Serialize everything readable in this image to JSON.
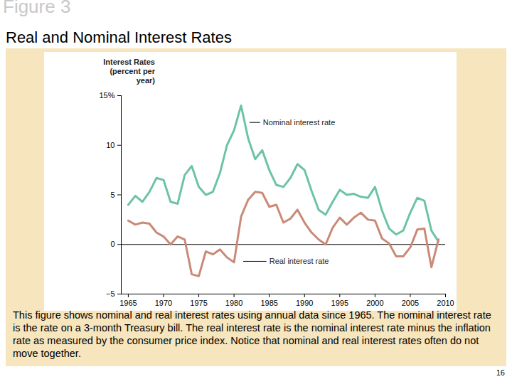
{
  "figure_label": "Figure 3",
  "caption": "This figure shows nominal and real interest rates using annual data since 1965. The nominal interest rate is the rate on a 3-month Treasury bill. The real interest rate is the nominal interest rate minus the inflation rate as measured by the consumer price index. Notice that nominal and real interest rates often do not move together.",
  "page": "16",
  "chart_data": {
    "type": "line",
    "title": "Real and Nominal Interest Rates",
    "y_label": "Interest Rates (percent per year)",
    "x": [
      1965,
      1966,
      1967,
      1968,
      1969,
      1970,
      1971,
      1972,
      1973,
      1974,
      1975,
      1976,
      1977,
      1978,
      1979,
      1980,
      1981,
      1982,
      1983,
      1984,
      1985,
      1986,
      1987,
      1988,
      1989,
      1990,
      1991,
      1992,
      1993,
      1994,
      1995,
      1996,
      1997,
      1998,
      1999,
      2000,
      2001,
      2002,
      2003,
      2004,
      2005,
      2006,
      2007,
      2008,
      2009
    ],
    "series": [
      {
        "name": "Nominal interest rate",
        "color": "#6cc4a4",
        "values": [
          4.0,
          4.9,
          4.3,
          5.3,
          6.7,
          6.5,
          4.3,
          4.1,
          7.0,
          7.9,
          5.8,
          5.0,
          5.3,
          7.2,
          10.0,
          11.5,
          14.0,
          10.7,
          8.6,
          9.5,
          7.5,
          6.0,
          5.8,
          6.7,
          8.1,
          7.5,
          5.4,
          3.5,
          3.0,
          4.3,
          5.5,
          5.0,
          5.1,
          4.8,
          4.7,
          5.8,
          3.4,
          1.6,
          1.0,
          1.4,
          3.2,
          4.7,
          4.4,
          1.4,
          0.3
        ]
      },
      {
        "name": "Real interest rate",
        "color": "#c98a78",
        "values": [
          2.4,
          2.0,
          2.2,
          2.1,
          1.2,
          0.8,
          0.0,
          0.8,
          0.5,
          -3.0,
          -3.2,
          -0.7,
          -1.0,
          -0.5,
          -1.3,
          -1.8,
          2.8,
          4.5,
          5.3,
          5.2,
          3.8,
          4.0,
          2.2,
          2.6,
          3.5,
          2.2,
          1.2,
          0.5,
          0.0,
          1.7,
          2.7,
          2.0,
          2.7,
          3.2,
          2.5,
          2.4,
          0.6,
          0.1,
          -1.2,
          -1.2,
          -0.3,
          1.5,
          1.6,
          -2.3,
          0.5
        ]
      }
    ],
    "xlim": [
      1964,
      2010
    ],
    "xticks": [
      1965,
      1970,
      1975,
      1980,
      1985,
      1990,
      1995,
      2000,
      2005,
      2010
    ],
    "ylim": [
      -5,
      15
    ],
    "yticks": [
      {
        "value": -5,
        "label": "−5"
      },
      0,
      5,
      10,
      {
        "value": 15,
        "label": "15%"
      }
    ],
    "grid": false
  }
}
